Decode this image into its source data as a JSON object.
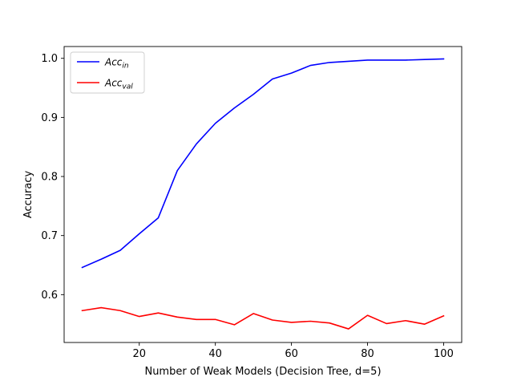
{
  "chart_data": {
    "type": "line",
    "xlabel": "Number of Weak Models (Decision Tree, d=5)",
    "ylabel": "Accuracy",
    "xlim": [
      0.25,
      104.75
    ],
    "ylim": [
      0.519,
      1.02
    ],
    "xticks": [
      20,
      40,
      60,
      80,
      100
    ],
    "xtick_labels": [
      "20",
      "40",
      "60",
      "80",
      "100"
    ],
    "yticks": [
      0.6,
      0.7,
      0.8,
      0.9,
      1.0
    ],
    "ytick_labels": [
      "0.6",
      "0.7",
      "0.8",
      "0.9",
      "1.0"
    ],
    "grid": false,
    "legend_position": "top-left",
    "x": [
      5,
      10,
      15,
      20,
      25,
      30,
      35,
      40,
      45,
      50,
      55,
      60,
      65,
      70,
      75,
      80,
      85,
      90,
      95,
      100
    ],
    "series": [
      {
        "name": "Acc",
        "name_sub": "in",
        "color": "#0000ff",
        "values": [
          0.646,
          0.66,
          0.675,
          0.703,
          0.73,
          0.81,
          0.855,
          0.89,
          0.916,
          0.939,
          0.965,
          0.975,
          0.988,
          0.993,
          0.995,
          0.997,
          0.997,
          0.997,
          0.998,
          0.999
        ]
      },
      {
        "name": "Acc",
        "name_sub": "val",
        "color": "#ff0000",
        "values": [
          0.573,
          0.578,
          0.573,
          0.563,
          0.569,
          0.562,
          0.558,
          0.558,
          0.549,
          0.568,
          0.557,
          0.553,
          0.555,
          0.552,
          0.542,
          0.565,
          0.551,
          0.556,
          0.55,
          0.564
        ]
      }
    ]
  }
}
